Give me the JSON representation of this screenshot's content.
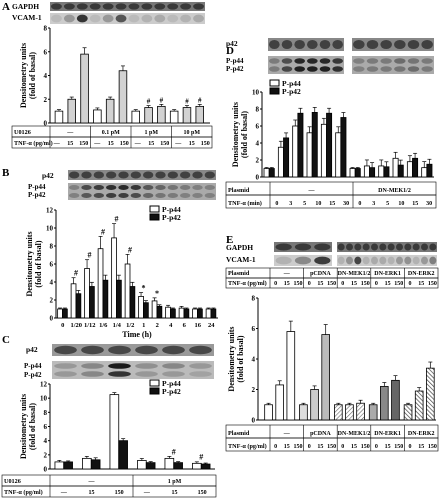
{
  "panels": {
    "A": {
      "label": "A",
      "blot_labels": [
        "GAPDH",
        "VCAM-1"
      ],
      "treatment_rows": [
        {
          "label": "U0126",
          "cells": [
            "—",
            "0.1 pM",
            "1 pM",
            "10 pM"
          ]
        },
        {
          "label": "TNF-α (pg/ml)",
          "cells": [
            "—",
            "15",
            "150",
            "—",
            "15",
            "150",
            "—",
            "15",
            "150",
            "—",
            "15",
            "150"
          ]
        }
      ]
    },
    "B": {
      "label": "B",
      "blot_labels": [
        "p42",
        "P-p44",
        "P-p42"
      ]
    },
    "C": {
      "label": "C",
      "blot_labels": [
        "p42",
        "P-p44",
        "P-p42"
      ],
      "treatment_rows": [
        {
          "label": "U0126",
          "cells": [
            "—",
            "1 pM"
          ]
        },
        {
          "label": "TNF-α (pg/ml)",
          "cells": [
            "—",
            "15",
            "150",
            "—",
            "15",
            "150"
          ]
        }
      ]
    },
    "D": {
      "label": "D",
      "blot_labels": [
        "p42",
        "P-p44",
        "P-p42"
      ],
      "treatment_rows": [
        {
          "label": "Plasmid",
          "cells": [
            "—",
            "DN-MEK1/2"
          ]
        },
        {
          "label": "TNF-α (min)",
          "cells": [
            "0",
            "3",
            "5",
            "10",
            "15",
            "30",
            "0",
            "3",
            "5",
            "10",
            "15",
            "30"
          ]
        }
      ]
    },
    "E": {
      "label": "E",
      "blot_labels": [
        "GAPDH",
        "VCAM-1"
      ],
      "treatment_rows": [
        {
          "label": "Plasmid",
          "cells": [
            "—",
            "pCDNA",
            "DN-MEK1/2",
            "DN-ERK1",
            "DN-ERK2"
          ]
        },
        {
          "label": "TNF-α (pg/ml)",
          "cells": [
            "0",
            "15",
            "150",
            "0",
            "15",
            "150",
            "0",
            "15",
            "150",
            "0",
            "15",
            "150",
            "0",
            "15",
            "150"
          ]
        }
      ]
    }
  },
  "chart_data": [
    {
      "id": "A",
      "type": "bar",
      "ylabel": "Densitometry units (fold of basal)",
      "ylim": [
        0,
        8
      ],
      "yticks": [
        "0",
        "2",
        "4",
        "6",
        "8"
      ],
      "series": [
        {
          "values": [
            1.0,
            2.0,
            5.8,
            1.1,
            2.0,
            4.4,
            1.0,
            1.3,
            1.4,
            1.0,
            1.3,
            1.4
          ]
        }
      ],
      "markers": [
        "",
        "",
        "",
        "",
        "",
        "",
        "",
        "#",
        "#",
        "",
        "#",
        "#"
      ],
      "colors": [
        "#ffffff",
        "#d2d2d2"
      ]
    },
    {
      "id": "B",
      "type": "bar",
      "ylabel": "Densitometry units (fold of basal)",
      "xlabel": "Time (h)",
      "ylim": [
        0,
        12
      ],
      "yticks": [
        "0",
        "2",
        "4",
        "6",
        "8",
        "10",
        "12"
      ],
      "categories": [
        "0",
        "1/20",
        "1/12",
        "1/6",
        "1/4",
        "1/2",
        "1",
        "2",
        "4",
        "6",
        "16",
        "24"
      ],
      "legend": [
        "P-p44",
        "P-p42"
      ],
      "series": [
        {
          "name": "P-p44",
          "values": [
            1.0,
            3.8,
            5.5,
            7.7,
            8.9,
            6.0,
            2.4,
            1.9,
            1.2,
            1.1,
            1.0,
            1.0
          ]
        },
        {
          "name": "P-p42",
          "values": [
            1.0,
            2.7,
            3.5,
            4.2,
            4.2,
            3.5,
            1.7,
            1.3,
            1.0,
            1.0,
            1.0,
            1.0
          ]
        }
      ],
      "markers": [
        "",
        "#",
        "#",
        "#",
        "#",
        "#",
        "*",
        "*",
        "",
        "",
        "",
        ""
      ]
    },
    {
      "id": "C",
      "type": "bar",
      "ylabel": "Densitometry units (fold of basal)",
      "ylim": [
        0,
        12
      ],
      "yticks": [
        "0",
        "2",
        "4",
        "6",
        "8",
        "10",
        "12"
      ],
      "legend": [
        "P-p44",
        "P-p42"
      ],
      "series": [
        {
          "name": "P-p44",
          "values": [
            1.0,
            1.5,
            10.5,
            1.2,
            1.5,
            0.8
          ]
        },
        {
          "name": "P-p42",
          "values": [
            1.0,
            1.3,
            4.0,
            0.9,
            0.9,
            0.7
          ]
        }
      ],
      "markers": [
        "",
        "",
        "",
        "",
        "#",
        "#"
      ]
    },
    {
      "id": "D",
      "type": "bar",
      "ylabel": "Densitometry units (fold of basal)",
      "ylim": [
        0,
        10
      ],
      "yticks": [
        "0",
        "2",
        "4",
        "6",
        "8",
        "10"
      ],
      "legend": [
        "P-p44",
        "P-p42"
      ],
      "series": [
        {
          "name": "P-p44",
          "values": [
            1.0,
            3.5,
            6.0,
            5.2,
            6.2,
            5.2,
            1.0,
            1.3,
            1.3,
            2.2,
            1.8,
            1.1
          ]
        },
        {
          "name": "P-p42",
          "values": [
            1.0,
            4.6,
            7.5,
            7.6,
            7.5,
            7.0,
            1.0,
            1.1,
            1.2,
            1.4,
            2.2,
            1.5
          ]
        }
      ]
    },
    {
      "id": "E",
      "type": "bar",
      "ylabel": "Densitometry units (fold of basal)",
      "ylim": [
        0,
        8
      ],
      "yticks": [
        "0",
        "2",
        "4",
        "6",
        "8"
      ],
      "series": [
        {
          "values": [
            1.0,
            2.3,
            5.8,
            1.0,
            2.0,
            5.6,
            1.0,
            1.0,
            1.1,
            1.0,
            2.2,
            2.6,
            1.0,
            1.9,
            3.4
          ]
        }
      ],
      "colors": [
        "#ffffff",
        "#d8d8d8",
        "#999999",
        "#cccccc",
        "#606060"
      ]
    }
  ]
}
